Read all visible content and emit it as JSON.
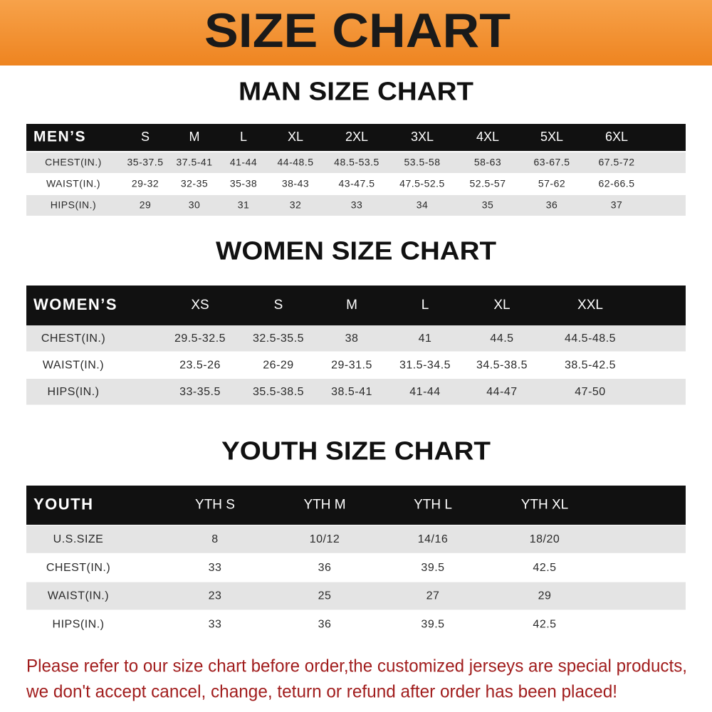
{
  "header": {
    "title": "SIZE CHART"
  },
  "sections": [
    {
      "title": "MAN SIZE CHART",
      "header": [
        "MEN’S",
        "S",
        "M",
        "L",
        "XL",
        "2XL",
        "3XL",
        "4XL",
        "5XL",
        "6XL"
      ],
      "rows": [
        [
          "CHEST(IN.)",
          "35-37.5",
          "37.5-41",
          "41-44",
          "44-48.5",
          "48.5-53.5",
          "53.5-58",
          "58-63",
          "63-67.5",
          "67.5-72"
        ],
        [
          "WAIST(IN.)",
          "29-32",
          "32-35",
          "35-38",
          "38-43",
          "43-47.5",
          "47.5-52.5",
          "52.5-57",
          "57-62",
          "62-66.5"
        ],
        [
          "HIPS(IN.)",
          "29",
          "30",
          "31",
          "32",
          "33",
          "34",
          "35",
          "36",
          "37"
        ]
      ]
    },
    {
      "title": "WOMEN SIZE CHART",
      "header": [
        "WOMEN’S",
        "XS",
        "S",
        "M",
        "L",
        "XL",
        "XXL"
      ],
      "rows": [
        [
          "CHEST(IN.)",
          "29.5-32.5",
          "32.5-35.5",
          "38",
          "41",
          "44.5",
          "44.5-48.5"
        ],
        [
          "WAIST(IN.)",
          "23.5-26",
          "26-29",
          "29-31.5",
          "31.5-34.5",
          "34.5-38.5",
          "38.5-42.5"
        ],
        [
          "HIPS(IN.)",
          "33-35.5",
          "35.5-38.5",
          "38.5-41",
          "41-44",
          "44-47",
          "47-50"
        ]
      ]
    },
    {
      "title": "YOUTH SIZE CHART",
      "header": [
        "YOUTH",
        "YTH S",
        "YTH M",
        "YTH L",
        "YTH XL"
      ],
      "rows": [
        [
          "U.S.SIZE",
          "8",
          "10/12",
          "14/16",
          "18/20"
        ],
        [
          "CHEST(IN.)",
          "33",
          "36",
          "39.5",
          "42.5"
        ],
        [
          "WAIST(IN.)",
          "23",
          "25",
          "27",
          "29"
        ],
        [
          "HIPS(IN.)",
          "33",
          "36",
          "39.5",
          "42.5"
        ]
      ]
    }
  ],
  "footer": {
    "lines": [
      "Please refer to our size chart before order,the customized jerseys are special products,",
      "we don't accept cancel, change, teturn or refund after order has been placed!"
    ]
  }
}
